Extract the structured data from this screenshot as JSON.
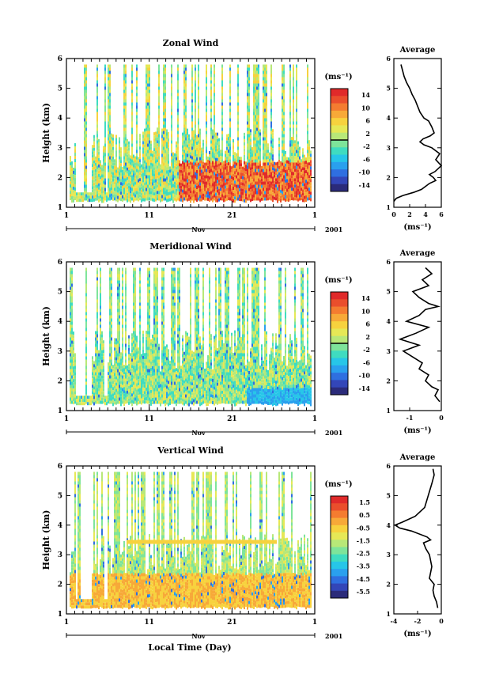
{
  "figure": {
    "x_axis_label": "Local Time (Day)",
    "year_label": "2001",
    "month_label": "Nov"
  },
  "chart_data": [
    {
      "type": "heatmap",
      "title": "Zonal Wind",
      "ylabel": "Height (km)",
      "xlim": [
        1,
        31
      ],
      "ylim": [
        1,
        6
      ],
      "xticks": [
        "1",
        "11",
        "21",
        "1"
      ],
      "yticks": [
        "1",
        "2",
        "3",
        "4",
        "5",
        "6"
      ],
      "colorbar": {
        "unit": "(ms⁻¹)",
        "range": [
          -16,
          16
        ],
        "ticks": [
          "14",
          "10",
          "6",
          "2",
          "-2",
          "-6",
          "-10",
          "-14"
        ],
        "zero_line": true
      },
      "profile": {
        "title": "Average",
        "xlabel": "(ms⁻¹)",
        "xlim": [
          0,
          6
        ],
        "xticks": [
          "0",
          "2",
          "4",
          "6"
        ],
        "heights": [
          1.2,
          1.3,
          1.4,
          1.5,
          1.6,
          1.8,
          1.9,
          2.0,
          2.1,
          2.2,
          2.4,
          2.6,
          2.8,
          3.0,
          3.1,
          3.2,
          3.3,
          3.4,
          3.5,
          3.7,
          3.9,
          4.0,
          4.2,
          4.4,
          4.6,
          4.8,
          5.0,
          5.2,
          5.4,
          5.6,
          5.8
        ],
        "values": [
          0.0,
          0.3,
          1.2,
          2.5,
          3.5,
          4.5,
          5.3,
          5.0,
          4.5,
          5.2,
          6.0,
          5.3,
          5.8,
          4.8,
          3.8,
          3.3,
          3.7,
          4.6,
          5.1,
          4.8,
          4.4,
          3.8,
          3.3,
          3.0,
          2.7,
          2.3,
          2.0,
          1.6,
          1.3,
          1.1,
          0.9
        ]
      }
    },
    {
      "type": "heatmap",
      "title": "Meridional Wind",
      "ylabel": "Height (km)",
      "xlim": [
        1,
        31
      ],
      "ylim": [
        1,
        6
      ],
      "xticks": [
        "1",
        "11",
        "21",
        "1"
      ],
      "yticks": [
        "1",
        "2",
        "3",
        "4",
        "5",
        "6"
      ],
      "colorbar": {
        "unit": "(ms⁻¹)",
        "range": [
          -16,
          16
        ],
        "ticks": [
          "14",
          "10",
          "6",
          "2",
          "-2",
          "-6",
          "-10",
          "-14"
        ],
        "zero_line": true
      },
      "profile": {
        "title": "Average",
        "xlabel": "(ms⁻¹)",
        "xlim": [
          -1.5,
          0
        ],
        "xticks": [
          "-1",
          "0"
        ],
        "heights": [
          1.3,
          1.5,
          1.7,
          1.8,
          2.0,
          2.2,
          2.4,
          2.6,
          2.8,
          3.0,
          3.2,
          3.4,
          3.6,
          3.8,
          4.0,
          4.2,
          4.4,
          4.5,
          4.6,
          4.8,
          5.0,
          5.2,
          5.4,
          5.6,
          5.8
        ],
        "values": [
          -0.05,
          -0.2,
          -0.1,
          -0.3,
          -0.5,
          -0.4,
          -0.7,
          -0.6,
          -0.9,
          -1.2,
          -0.7,
          -1.3,
          -0.8,
          -0.4,
          -1.1,
          -0.7,
          -0.5,
          -0.1,
          -0.4,
          -0.7,
          -0.9,
          -0.4,
          -0.6,
          -0.3,
          -0.5
        ]
      }
    },
    {
      "type": "heatmap",
      "title": "Vertical Wind",
      "ylabel": "Height (km)",
      "xlim": [
        1,
        31
      ],
      "ylim": [
        1,
        6
      ],
      "xticks": [
        "1",
        "11",
        "21",
        "1"
      ],
      "yticks": [
        "1",
        "2",
        "3",
        "4",
        "5",
        "6"
      ],
      "colorbar": {
        "unit": "(ms⁻¹)",
        "range": [
          -6,
          2
        ],
        "ticks": [
          "1.5",
          "0.5",
          "-0.5",
          "-1.5",
          "-2.5",
          "-3.5",
          "-4.5",
          "-5.5"
        ],
        "zero_line": false
      },
      "profile": {
        "title": "Average",
        "xlabel": "(ms⁻¹)",
        "xlim": [
          -4,
          0
        ],
        "xticks": [
          "-4",
          "-2",
          "0"
        ],
        "heights": [
          1.2,
          1.4,
          1.6,
          1.8,
          2.0,
          2.2,
          2.6,
          3.0,
          3.2,
          3.4,
          3.5,
          3.6,
          3.8,
          3.9,
          4.0,
          4.1,
          4.3,
          4.6,
          5.0,
          5.4,
          5.7,
          5.9
        ],
        "values": [
          -0.3,
          -0.4,
          -0.6,
          -0.7,
          -0.6,
          -1.0,
          -0.8,
          -1.0,
          -1.3,
          -1.5,
          -0.9,
          -1.2,
          -2.5,
          -3.5,
          -3.9,
          -3.3,
          -2.2,
          -1.4,
          -1.1,
          -0.8,
          -0.6,
          -0.7
        ]
      }
    }
  ]
}
